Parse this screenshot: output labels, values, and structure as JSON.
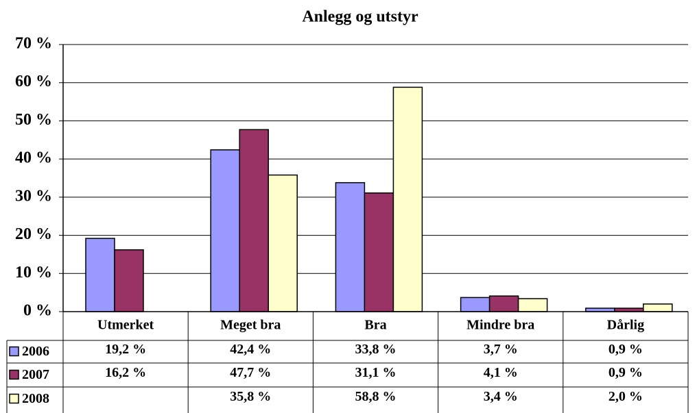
{
  "chart_data": {
    "type": "bar",
    "title": "Anlegg og utstyr",
    "categories": [
      "Utmerket",
      "Meget bra",
      "Bra",
      "Mindre bra",
      "Dårlig"
    ],
    "series": [
      {
        "name": "2006",
        "color": "#9999ff",
        "values": [
          19.2,
          42.4,
          33.8,
          3.7,
          0.9
        ],
        "value_labels": [
          "19,2 %",
          "42,4 %",
          "33,8 %",
          "3,7 %",
          "0,9 %"
        ]
      },
      {
        "name": "2007",
        "color": "#993366",
        "values": [
          16.2,
          47.7,
          31.1,
          4.1,
          0.9
        ],
        "value_labels": [
          "16,2 %",
          "47,7 %",
          "31,1 %",
          "4,1 %",
          "0,9 %"
        ]
      },
      {
        "name": "2008",
        "color": "#ffffcc",
        "values": [
          null,
          35.8,
          58.8,
          3.4,
          2.0
        ],
        "value_labels": [
          null,
          "35,8 %",
          "58,8 %",
          "3,4 %",
          "2,0 %"
        ]
      }
    ],
    "ylim": [
      0,
      70
    ],
    "yticks": [
      {
        "value": 0,
        "label": "0 %"
      },
      {
        "value": 10,
        "label": "10 %"
      },
      {
        "value": 20,
        "label": "20 %"
      },
      {
        "value": 30,
        "label": "30 %"
      },
      {
        "value": 40,
        "label": "40 %"
      },
      {
        "value": 50,
        "label": "50 %"
      },
      {
        "value": 60,
        "label": "60 %"
      },
      {
        "value": 70,
        "label": "70 %"
      }
    ],
    "grid": true
  }
}
